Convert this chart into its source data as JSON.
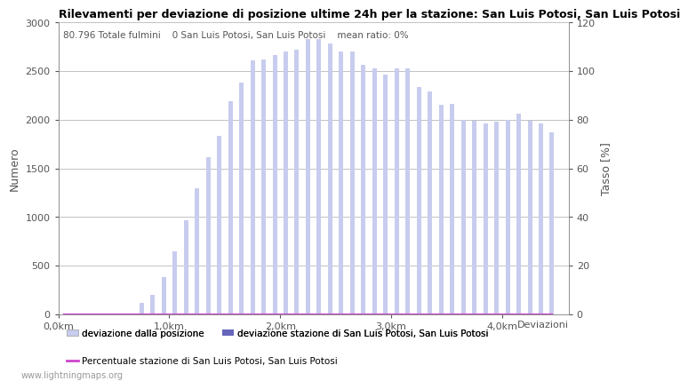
{
  "title": "Rilevamenti per deviazione di posizione ultime 24h per la stazione: San Luis Potosi, San Luis Potosi",
  "subtitle": "80.796 Totale fulmini    0 San Luis Potosi, San Luis Potosi    mean ratio: 0%",
  "xlabel": "Deviazioni",
  "ylabel_left": "Numero",
  "ylabel_right": "Tasso [%]",
  "xlim": [
    0,
    4.6
  ],
  "ylim_left": [
    0,
    3000
  ],
  "ylim_right": [
    0,
    120
  ],
  "xtick_labels": [
    "0,0km",
    "1,0km",
    "2,0km",
    "3,0km",
    "4,0km"
  ],
  "xtick_positions": [
    0.0,
    1.0,
    2.0,
    3.0,
    4.0
  ],
  "ytick_left": [
    0,
    500,
    1000,
    1500,
    2000,
    2500,
    3000
  ],
  "ytick_right": [
    0,
    20,
    40,
    60,
    80,
    100,
    120
  ],
  "bar_color_light": "#c8ccee",
  "bar_color_dark": "#6666bb",
  "line_color": "#cc44cc",
  "background_color": "#ffffff",
  "grid_color": "#aaaaaa",
  "text_color": "#555555",
  "title_color": "#000000",
  "legend_label_light": "deviazione dalla posizione",
  "legend_label_dark": "deviazione stazione di San Luis Potosi, San Luis Potosi",
  "legend_label_line": "Percentuale stazione di San Luis Potosi, San Luis Potosi",
  "watermark": "www.lightningmaps.org",
  "bar_width": 0.04,
  "bar_positions": [
    0.05,
    0.15,
    0.25,
    0.35,
    0.45,
    0.55,
    0.65,
    0.75,
    0.85,
    0.95,
    1.05,
    1.15,
    1.25,
    1.35,
    1.45,
    1.55,
    1.65,
    1.75,
    1.85,
    1.95,
    2.05,
    2.15,
    2.25,
    2.35,
    2.45,
    2.55,
    2.65,
    2.75,
    2.85,
    2.95,
    3.05,
    3.15,
    3.25,
    3.35,
    3.45,
    3.55,
    3.65,
    3.75,
    3.85,
    3.95,
    4.05,
    4.15,
    4.25,
    4.35,
    4.45
  ],
  "bar_heights": [
    0,
    0,
    0,
    0,
    0,
    0,
    0,
    120,
    200,
    380,
    650,
    970,
    1290,
    1610,
    1830,
    2190,
    2380,
    2610,
    2620,
    2660,
    2700,
    2720,
    2830,
    2830,
    2780,
    2700,
    2700,
    2560,
    2530,
    2460,
    2530,
    2530,
    2340,
    2290,
    2150,
    2160,
    2000,
    1990,
    1960,
    1980,
    2000,
    2060,
    1990,
    1960,
    1870
  ],
  "bar_heights_dark": [
    0,
    0,
    0,
    0,
    0,
    0,
    0,
    0,
    0,
    0,
    0,
    0,
    0,
    0,
    0,
    0,
    0,
    0,
    0,
    0,
    0,
    0,
    0,
    0,
    0,
    0,
    0,
    0,
    0,
    0,
    0,
    0,
    0,
    0,
    0,
    0,
    0,
    0,
    0,
    0,
    0,
    0,
    0,
    0,
    0
  ],
  "line_values": [
    0,
    0,
    0,
    0,
    0,
    0,
    0,
    0,
    0,
    0,
    0,
    0,
    0,
    0,
    0,
    0,
    0,
    0,
    0,
    0,
    0,
    0,
    0,
    0,
    0,
    0,
    0,
    0,
    0,
    0,
    0,
    0,
    0,
    0,
    0,
    0,
    0,
    0,
    0,
    0,
    0,
    0,
    0,
    0,
    0
  ]
}
